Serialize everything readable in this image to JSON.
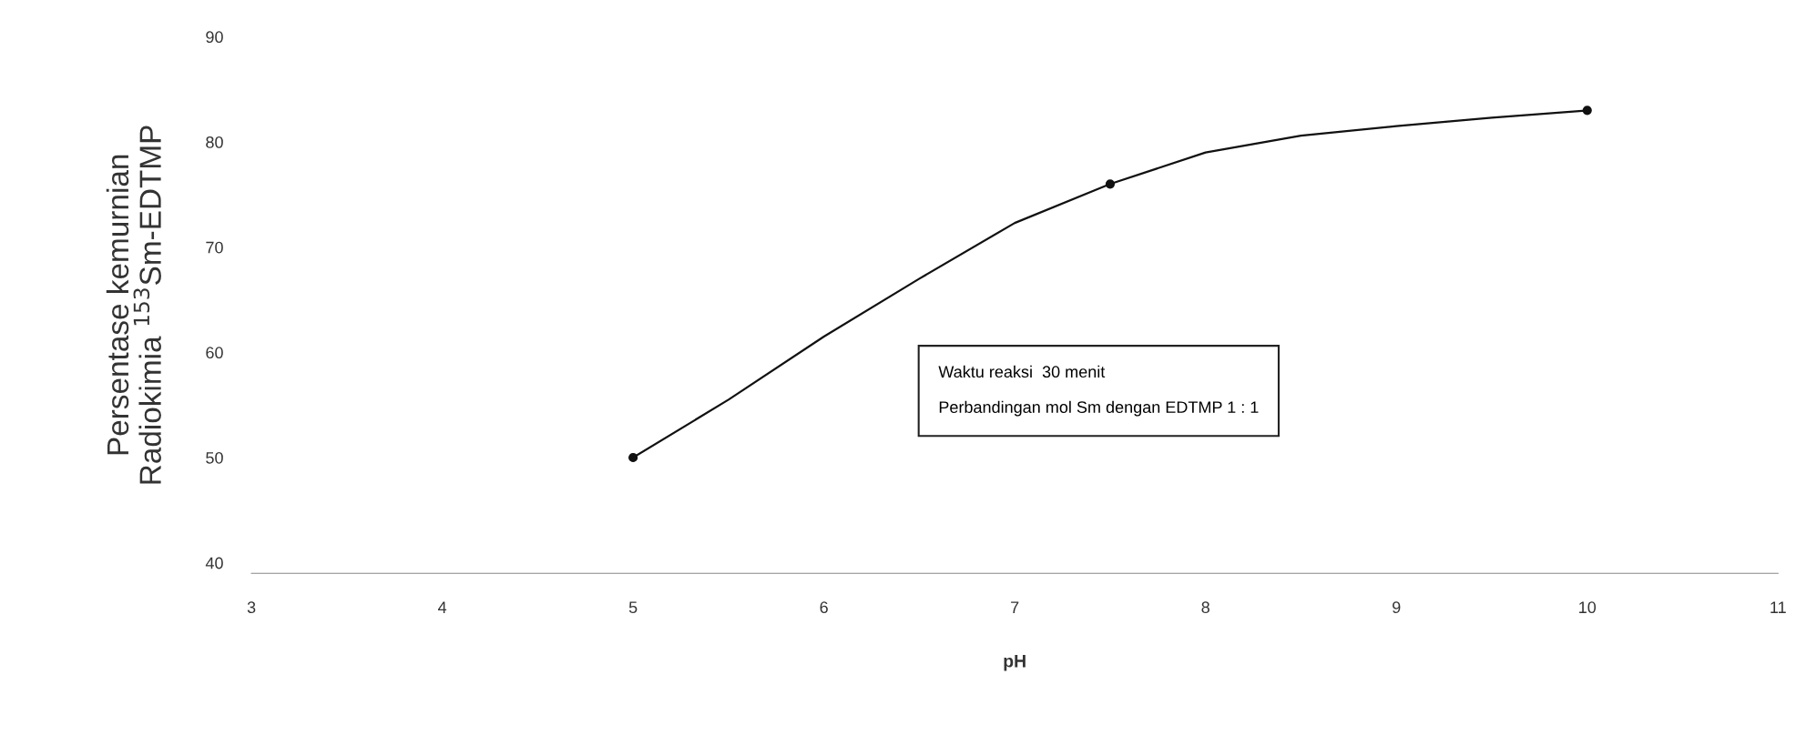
{
  "chart_data": {
    "type": "line",
    "xlabel": "pH",
    "ylabel": "Persentase kemurnian\nRadiokimia $^{153}$Sm-EDTMP",
    "x": [
      5,
      7.5,
      10
    ],
    "series": [
      {
        "type": "scatter",
        "marker": "circle",
        "color": "#111111",
        "values": [
          50,
          76,
          83
        ]
      },
      {
        "marker": "none",
        "color": "#111111",
        "x": [
          5,
          5.5,
          6,
          6.5,
          7,
          7.5,
          8,
          8.5,
          9,
          9.5,
          10
        ],
        "values": [
          50,
          55.5,
          61.5,
          67,
          72.3,
          76,
          79,
          80.6,
          81.5,
          82.3,
          83
        ]
      }
    ],
    "xlim": [
      3,
      11
    ],
    "ylim": [
      39,
      90
    ],
    "xticks": [
      3,
      4,
      5,
      6,
      7,
      8,
      9,
      10,
      11
    ],
    "yticks": [
      40,
      50,
      60,
      70,
      80,
      90
    ],
    "line_style": "solid",
    "grid": false,
    "legend": false,
    "annotations": [
      "Waktu reaksi  30 menit",
      "Perbandingan mol Sm dengan EDTMP 1 : 1"
    ]
  }
}
